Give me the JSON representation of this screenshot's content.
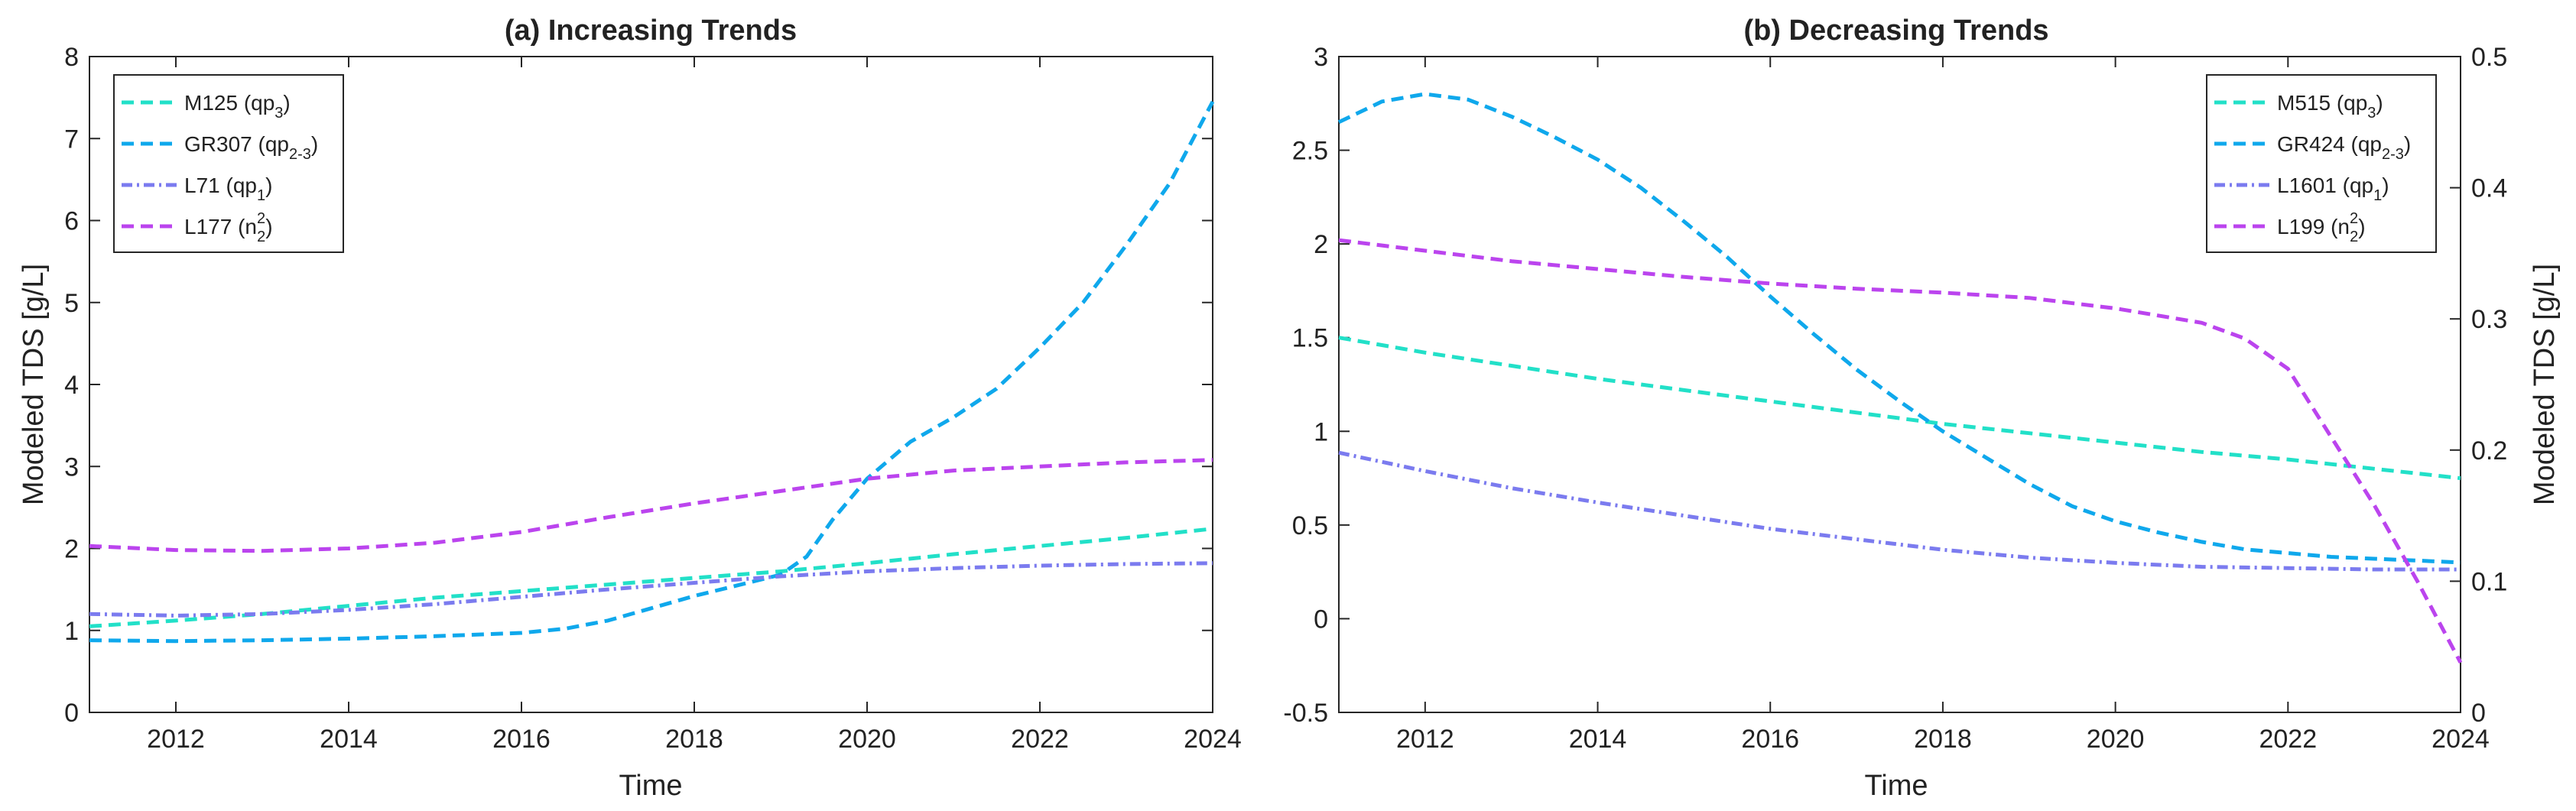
{
  "chart_data": [
    {
      "type": "line",
      "title": "(a) Increasing Trends",
      "xlabel": "Time",
      "ylabel": "Modeled TDS [g/L]",
      "xlim": [
        2011,
        2024
      ],
      "ylim": [
        0,
        8
      ],
      "xticks": [
        "2012",
        "2014",
        "2016",
        "2018",
        "2020",
        "2022",
        "2024"
      ],
      "yticks": [
        "0",
        "1",
        "2",
        "3",
        "4",
        "5",
        "6",
        "7",
        "8"
      ],
      "legend_position": "top-left",
      "grid": false,
      "series": [
        {
          "name": "M125 (qp3)",
          "label_main": "M125 (qp",
          "label_sub": "3",
          "label_sup": "",
          "label_end": ")",
          "color": "#22e0c8",
          "dash": "dash",
          "x": [
            2011,
            2012,
            2013,
            2014,
            2015,
            2016,
            2017,
            2018,
            2019,
            2020,
            2021,
            2022,
            2023,
            2024
          ],
          "values": [
            1.05,
            1.12,
            1.2,
            1.3,
            1.4,
            1.48,
            1.56,
            1.64,
            1.72,
            1.82,
            1.93,
            2.03,
            2.13,
            2.24
          ]
        },
        {
          "name": "GR307 (qp2-3)",
          "label_main": "GR307 (qp",
          "label_sub": "2-3",
          "label_sup": "",
          "label_end": ")",
          "color": "#0fa8ec",
          "dash": "dash",
          "x": [
            2011,
            2012,
            2013,
            2014,
            2015,
            2016,
            2016.5,
            2017,
            2017.5,
            2018,
            2018.5,
            2019,
            2019.3,
            2019.6,
            2020,
            2020.5,
            2021,
            2021.5,
            2022,
            2022.5,
            2023,
            2023.5,
            2024
          ],
          "values": [
            0.88,
            0.87,
            0.88,
            0.9,
            0.93,
            0.97,
            1.02,
            1.12,
            1.27,
            1.42,
            1.55,
            1.68,
            1.9,
            2.35,
            2.85,
            3.3,
            3.6,
            3.95,
            4.45,
            5.0,
            5.7,
            6.45,
            7.45
          ]
        },
        {
          "name": "L71 (qp1)",
          "label_main": "L71 (qp",
          "label_sub": "1",
          "label_sup": "",
          "label_end": ")",
          "color": "#7b7bef",
          "dash": "dashdot",
          "x": [
            2011,
            2012,
            2013,
            2014,
            2015,
            2016,
            2017,
            2018,
            2019,
            2020,
            2021,
            2022,
            2023,
            2024
          ],
          "values": [
            1.2,
            1.18,
            1.2,
            1.25,
            1.32,
            1.41,
            1.5,
            1.58,
            1.66,
            1.72,
            1.76,
            1.79,
            1.81,
            1.82
          ]
        },
        {
          "name": "L177 (n22)",
          "label_main": "L177 (n",
          "label_sub": "2",
          "label_sup": "2",
          "label_end": ")",
          "color": "#bb44ee",
          "dash": "dash",
          "x": [
            2011,
            2012,
            2013,
            2014,
            2015,
            2016,
            2017,
            2018,
            2019,
            2020,
            2021,
            2022,
            2023,
            2024
          ],
          "values": [
            2.03,
            1.98,
            1.97,
            2.0,
            2.07,
            2.2,
            2.38,
            2.55,
            2.7,
            2.85,
            2.95,
            3.0,
            3.05,
            3.08
          ]
        }
      ]
    },
    {
      "type": "line",
      "title": "(b) Decreasing Trends",
      "xlabel": "Time",
      "ylabel_left": "",
      "ylabel_right": "Modeled TDS [g/L]",
      "xlim": [
        2011,
        2024
      ],
      "ylim_left": [
        -0.5,
        3
      ],
      "ylim_right": [
        0,
        0.5
      ],
      "xticks": [
        "2012",
        "2014",
        "2016",
        "2018",
        "2020",
        "2022",
        "2024"
      ],
      "yticks_left": [
        "-0.5",
        "0",
        "0.5",
        "1",
        "1.5",
        "2",
        "2.5",
        "3"
      ],
      "yticks_right": [
        "0",
        "0.1",
        "0.2",
        "0.3",
        "0.4",
        "0.5"
      ],
      "legend_position": "top-right",
      "grid": false,
      "series": [
        {
          "name": "M515 (qp3)",
          "label_main": "M515 (qp",
          "label_sub": "3",
          "label_sup": "",
          "label_end": ")",
          "axis": "left",
          "color": "#22e0c8",
          "dash": "dash",
          "x": [
            2011,
            2012,
            2013,
            2014,
            2015,
            2016,
            2017,
            2018,
            2019,
            2020,
            2021,
            2022,
            2023,
            2024
          ],
          "values": [
            1.5,
            1.42,
            1.35,
            1.28,
            1.22,
            1.16,
            1.1,
            1.04,
            0.99,
            0.94,
            0.89,
            0.85,
            0.8,
            0.75
          ]
        },
        {
          "name": "GR424 (qp2-3)",
          "label_main": "GR424 (qp",
          "label_sub": "2-3",
          "label_sup": "",
          "label_end": ")",
          "axis": "left",
          "color": "#0fa8ec",
          "dash": "dash",
          "x": [
            2011,
            2011.5,
            2012,
            2012.5,
            2013,
            2013.5,
            2014,
            2014.5,
            2015,
            2015.5,
            2016,
            2016.5,
            2017,
            2017.5,
            2018,
            2018.5,
            2019,
            2019.5,
            2020,
            2020.5,
            2021,
            2021.5,
            2022,
            2022.5,
            2023,
            2023.5,
            2024
          ],
          "values": [
            2.65,
            2.76,
            2.8,
            2.77,
            2.68,
            2.57,
            2.45,
            2.3,
            2.12,
            1.93,
            1.72,
            1.52,
            1.33,
            1.16,
            1.0,
            0.86,
            0.72,
            0.6,
            0.52,
            0.46,
            0.41,
            0.37,
            0.35,
            0.33,
            0.32,
            0.31,
            0.3
          ]
        },
        {
          "name": "L1601 (qp1)",
          "label_main": "L1601 (qp",
          "label_sub": "1",
          "label_sup": "",
          "label_end": ")",
          "axis": "right",
          "color": "#7b7bef",
          "dash": "dashdot",
          "x": [
            2011,
            2012,
            2013,
            2014,
            2015,
            2016,
            2017,
            2018,
            2019,
            2020,
            2021,
            2022,
            2023,
            2024
          ],
          "values": [
            0.198,
            0.184,
            0.171,
            0.16,
            0.15,
            0.14,
            0.132,
            0.124,
            0.118,
            0.114,
            0.111,
            0.11,
            0.109,
            0.109
          ]
        },
        {
          "name": "L199 (n22)",
          "label_main": "L199 (n",
          "label_sub": "2",
          "label_sup": "2",
          "label_end": ")",
          "axis": "right",
          "color": "#bb44ee",
          "dash": "dash",
          "x": [
            2011,
            2012,
            2013,
            2014,
            2015,
            2016,
            2017,
            2018,
            2019,
            2020,
            2021,
            2021.5,
            2022,
            2022.5,
            2023,
            2023.5,
            2024
          ],
          "values": [
            0.36,
            0.352,
            0.344,
            0.338,
            0.332,
            0.327,
            0.323,
            0.32,
            0.316,
            0.308,
            0.297,
            0.285,
            0.262,
            0.21,
            0.158,
            0.1,
            0.038
          ]
        }
      ]
    }
  ]
}
